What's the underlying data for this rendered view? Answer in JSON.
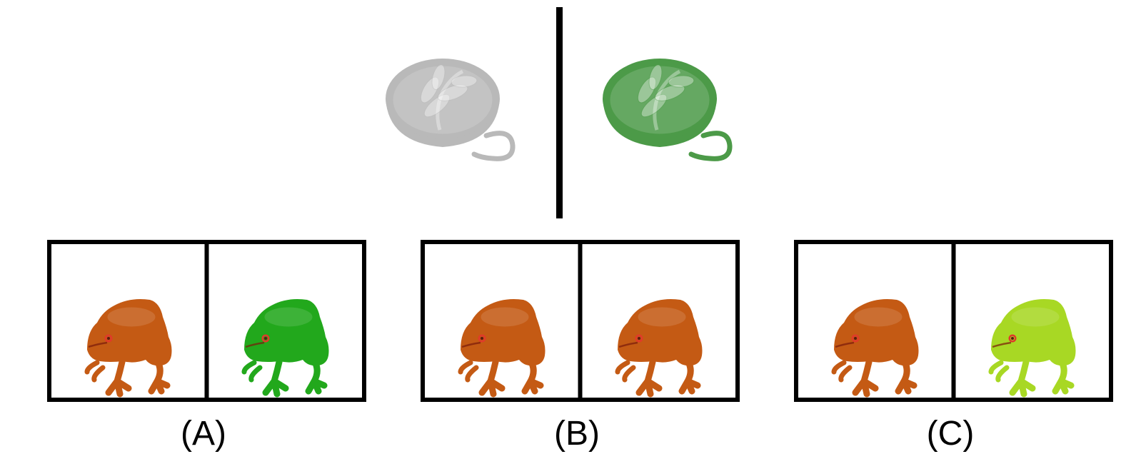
{
  "example": {
    "left_cup": {
      "icon": "latte-cup-icon",
      "tint": "#b9b9b9"
    },
    "right_cup": {
      "icon": "latte-cup-icon",
      "tint": "#4c9a48"
    }
  },
  "options": [
    {
      "label": "(A)",
      "left_frog_color": "#c45a14",
      "right_frog_color": "#22a81c"
    },
    {
      "label": "(B)",
      "left_frog_color": "#c45a14",
      "right_frog_color": "#c45a14"
    },
    {
      "label": "(C)",
      "left_frog_color": "#c45a14",
      "right_frog_color": "#a8d824"
    }
  ]
}
